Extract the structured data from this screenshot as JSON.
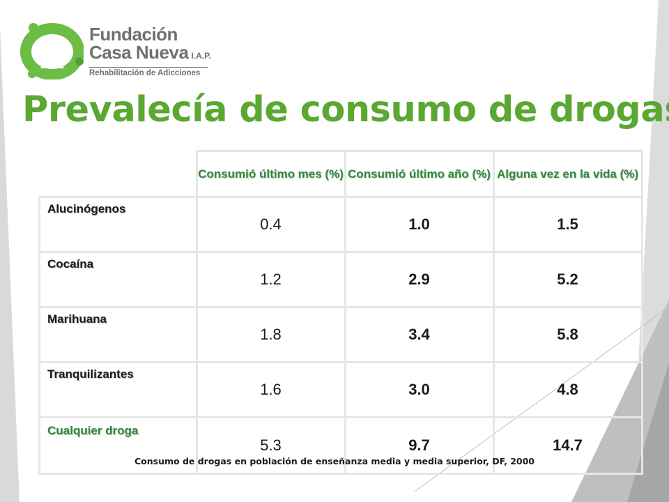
{
  "logo": {
    "line1": "Fundación",
    "line2": "Casa Nueva",
    "suffix": "I.A.P.",
    "tagline": "Rehabilitación de Adicciones"
  },
  "title": "Prevalecía de consumo de drogas",
  "table": {
    "headers": [
      "Consumió último mes (%)",
      "Consumió último año (%)",
      "Alguna vez en la vida (%)"
    ],
    "rows": [
      {
        "label": "Alucinógenos",
        "values": [
          "0.4",
          "1.0",
          "1.5"
        ]
      },
      {
        "label": "Cocaína",
        "values": [
          "1.2",
          "2.9",
          "5.2"
        ]
      },
      {
        "label": "Marihuana",
        "values": [
          "1.8",
          "3.4",
          "5.8"
        ]
      },
      {
        "label": "Tranquilizantes",
        "values": [
          "1.6",
          "3.0",
          "4.8"
        ]
      },
      {
        "label": "Cualquier droga",
        "values": [
          "5.3",
          "9.7",
          "14.7"
        ]
      }
    ]
  },
  "source": "Consumo de drogas en población  de enseñanza media y media superior, DF, 2000",
  "colors": {
    "title": "#5aa832",
    "header": "#2e8a3a",
    "logo_green": "#6dbd45",
    "logo_text": "#6f7072",
    "decoration": "#d2d3d4"
  }
}
